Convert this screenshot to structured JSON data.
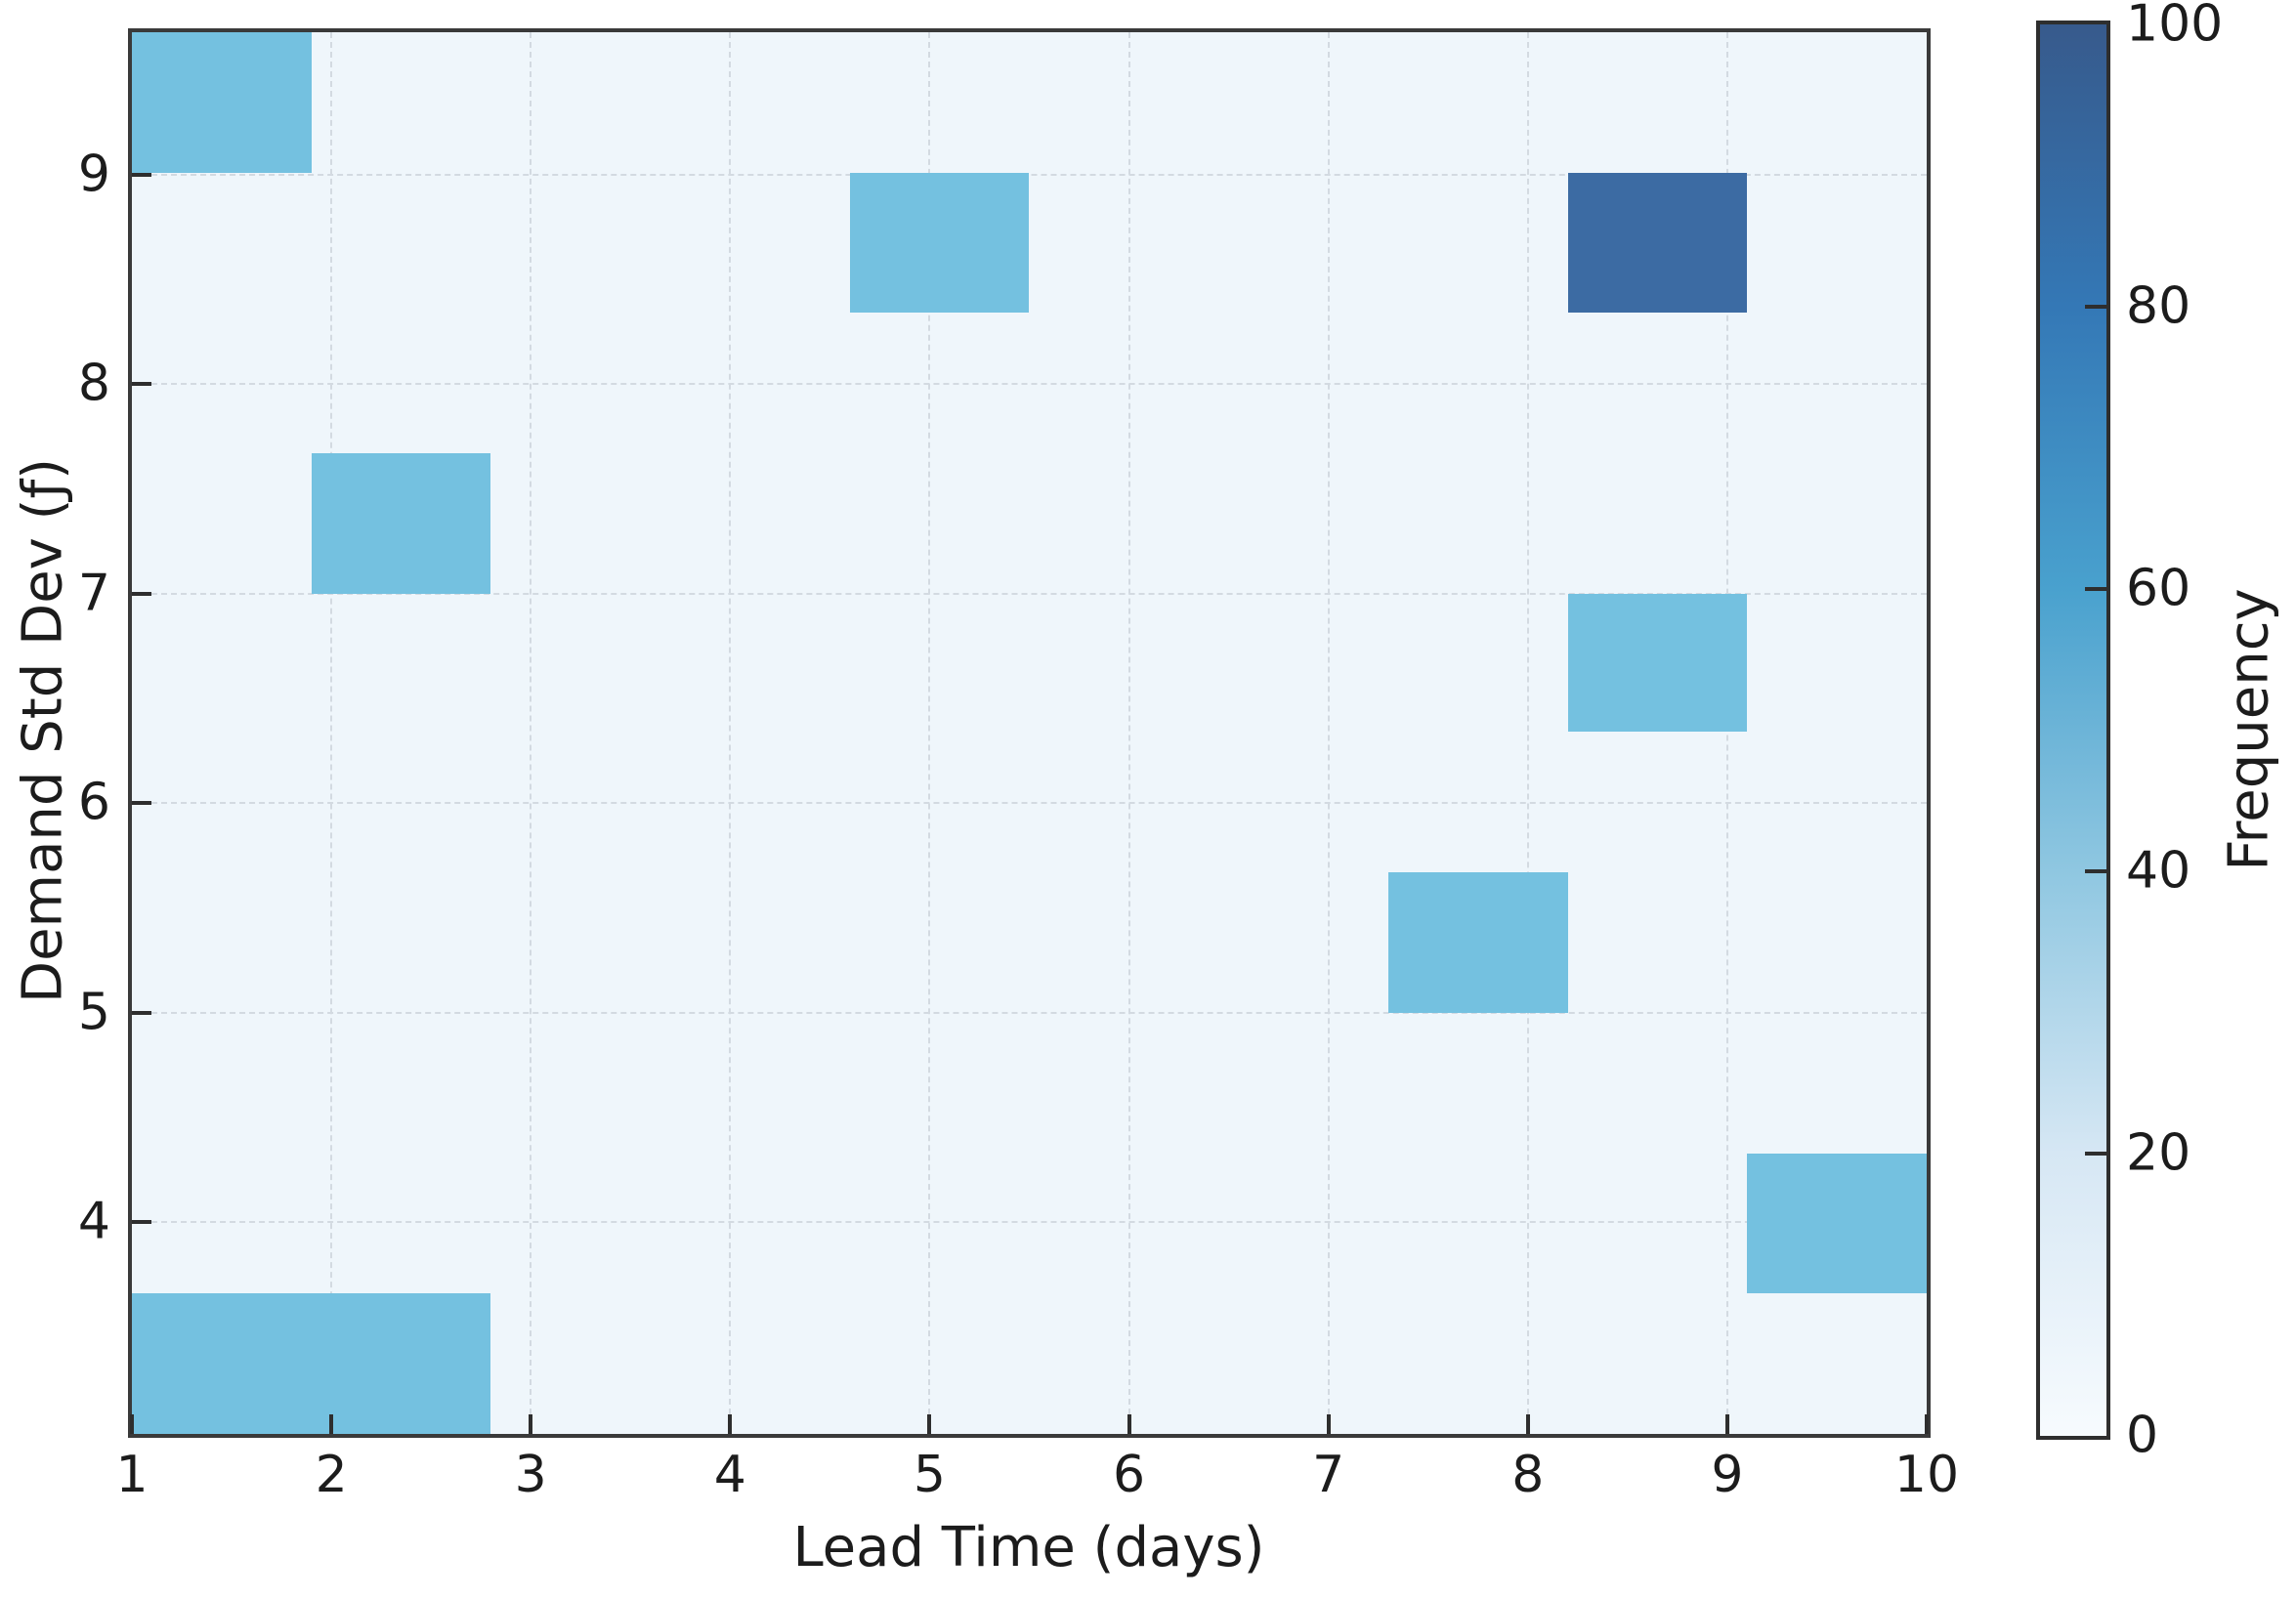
{
  "chart_data": {
    "type": "heatmap",
    "title": "",
    "xlabel": "Lead Time (days)",
    "ylabel": "Demand Std Dev (ƒ)",
    "colorbar_label": "Frequency",
    "x_range": [
      1,
      10
    ],
    "y_range": [
      2.99,
      9.68
    ],
    "x_ticks": [
      1,
      2,
      3,
      4,
      5,
      6,
      7,
      8,
      9,
      10
    ],
    "y_ticks": [
      4,
      5,
      6,
      7,
      8,
      9
    ],
    "x_bin_edges": [
      1.0,
      1.9,
      2.8,
      3.7,
      4.6,
      5.5,
      6.4,
      7.3,
      8.2,
      9.1,
      10.0
    ],
    "y_bin_edges": [
      2.99,
      3.66,
      4.33,
      5.0,
      5.67,
      6.34,
      7.0,
      7.67,
      8.34,
      9.01,
      9.68
    ],
    "grid": true,
    "legend_position": "none",
    "colorbar_range": [
      0,
      100
    ],
    "colorbar_ticks": [
      0,
      20,
      40,
      60,
      80,
      100
    ],
    "plot_background_color": "#eff6fb",
    "grid_color": "#d3dae1",
    "colorbar_stops": [
      {
        "pos": 0,
        "color": "#f7fbfe"
      },
      {
        "pos": 20,
        "color": "#d6e7f4"
      },
      {
        "pos": 40,
        "color": "#8fc7e1"
      },
      {
        "pos": 60,
        "color": "#49a1ce"
      },
      {
        "pos": 80,
        "color": "#3478b6"
      },
      {
        "pos": 100,
        "color": "#375a8c"
      }
    ],
    "cells": [
      {
        "x0": 1.0,
        "x1": 1.9,
        "y0": 9.01,
        "y1": 9.68,
        "value": 50,
        "color": "#74c1e0"
      },
      {
        "x0": 1.9,
        "x1": 2.8,
        "y0": 7.0,
        "y1": 7.67,
        "value": 50,
        "color": "#74c1e0"
      },
      {
        "x0": 4.6,
        "x1": 5.5,
        "y0": 8.34,
        "y1": 9.01,
        "value": 50,
        "color": "#74c1e0"
      },
      {
        "x0": 8.2,
        "x1": 9.1,
        "y0": 8.34,
        "y1": 9.01,
        "value": 85,
        "color": "#3c6ba3"
      },
      {
        "x0": 8.2,
        "x1": 9.1,
        "y0": 6.34,
        "y1": 7.0,
        "value": 50,
        "color": "#74c1e0"
      },
      {
        "x0": 7.3,
        "x1": 8.2,
        "y0": 5.0,
        "y1": 5.67,
        "value": 50,
        "color": "#74c1e0"
      },
      {
        "x0": 9.1,
        "x1": 10.0,
        "y0": 3.66,
        "y1": 4.33,
        "value": 50,
        "color": "#74c1e0"
      },
      {
        "x0": 1.0,
        "x1": 1.9,
        "y0": 2.99,
        "y1": 3.66,
        "value": 50,
        "color": "#74c1e0"
      },
      {
        "x0": 1.9,
        "x1": 2.8,
        "y0": 2.99,
        "y1": 3.66,
        "value": 50,
        "color": "#74c1e0"
      }
    ]
  }
}
